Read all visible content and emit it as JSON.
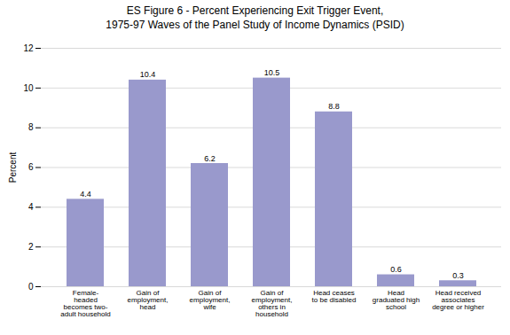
{
  "chart_data": {
    "type": "bar",
    "title": "ES Figure 6 - Percent Experiencing Exit Trigger Event,\n1975-97 Waves of the Panel Study of Income Dynamics (PSID)",
    "categories": [
      "Female-\nheaded\nbecomes two-\nadult household",
      "Gain of\nemployment,\nhead",
      "Gain of\nemployment,\nwife",
      "Gain of\nemployment,\nothers in\nhousehold",
      "Head ceases\nto be disabled",
      "Head\ngraduated high\nschool",
      "Head received\nassociates\ndegree or higher"
    ],
    "values": [
      4.4,
      10.4,
      6.2,
      10.5,
      8.8,
      0.6,
      0.3
    ],
    "color": "#9999cc",
    "ylabel": "Percent",
    "ylim": [
      0,
      12
    ],
    "yticks": [
      0,
      2,
      4,
      6,
      8,
      10,
      12
    ],
    "grid": true,
    "data_labels": true
  }
}
